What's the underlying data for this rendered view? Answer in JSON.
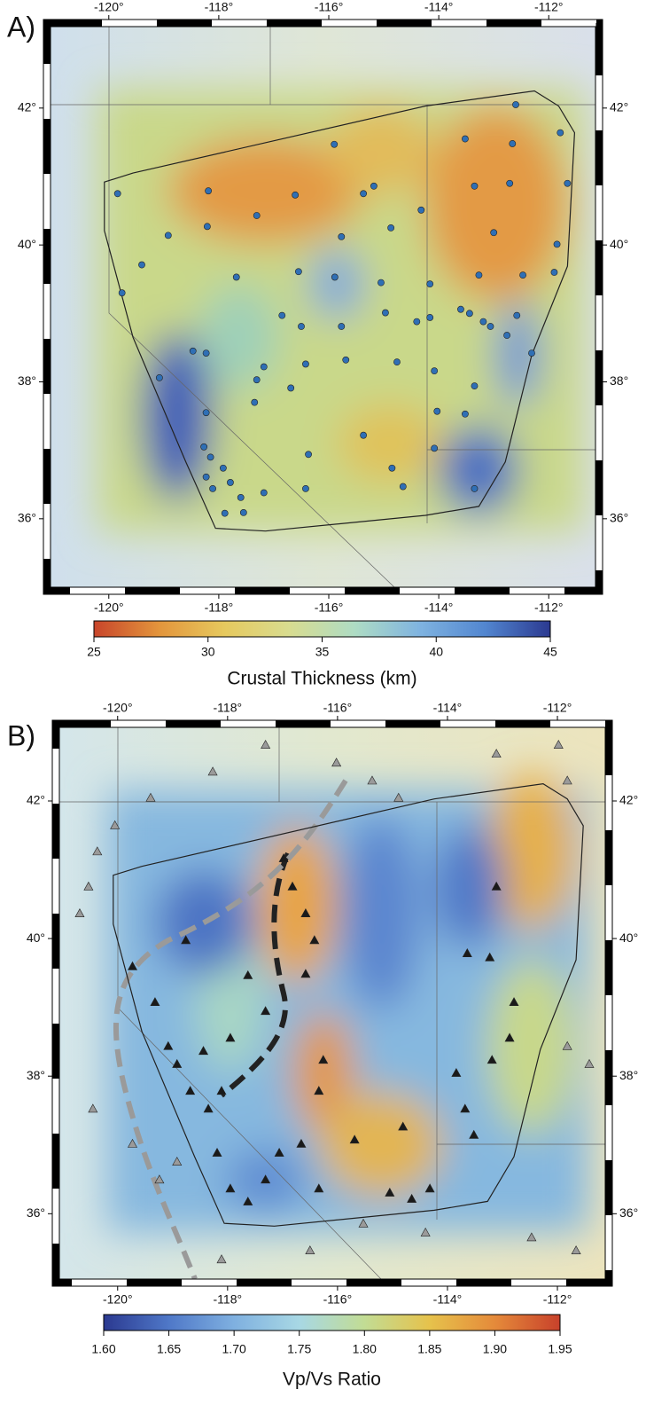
{
  "chart_data": [
    {
      "type": "map",
      "panel_label": "A)",
      "xlim": [
        -121.06,
        -111.15
      ],
      "ylim": [
        35,
        43.19
      ],
      "xticks": [
        {
          "value": -120,
          "label": "-120°"
        },
        {
          "value": -118,
          "label": "-118°"
        },
        {
          "value": -116,
          "label": "-116°"
        },
        {
          "value": -114,
          "label": "-114°"
        },
        {
          "value": -112,
          "label": "-112°"
        }
      ],
      "yticks": [
        {
          "value": 36,
          "label": "36°"
        },
        {
          "value": 38,
          "label": "38°"
        },
        {
          "value": 40,
          "label": "40°"
        },
        {
          "value": 42,
          "label": "42°"
        }
      ],
      "region": {
        "lon": [
          -120.08,
          -119.56,
          -114.24,
          -112.26,
          -111.82,
          -111.53,
          -111.66,
          -112.31,
          -112.79,
          -113.27,
          -114.24,
          -117.15,
          -118.06,
          -118.6,
          -119.56,
          -120.08
        ],
        "lat": [
          40.92,
          41.05,
          42.03,
          42.25,
          42.03,
          41.64,
          39.69,
          38.39,
          36.83,
          36.18,
          36.05,
          35.82,
          35.86,
          36.83,
          38.65,
          40.21
        ]
      },
      "series": [
        {
          "marker": "circle",
          "color": "#2f6fb5",
          "lon": [
            -112.6,
            -111.79,
            -113.52,
            -112.66,
            -115.9,
            -119.84,
            -118.19,
            -116.61,
            -115.37,
            -115.18,
            -113.35,
            -112.71,
            -111.66,
            -117.31,
            -114.32,
            -118.21,
            -114.87,
            -118.92,
            -115.77,
            -113.0,
            -111.85,
            -119.4,
            -119.76,
            -117.68,
            -116.55,
            -115.89,
            -115.05,
            -114.16,
            -113.27,
            -112.47,
            -111.9,
            -116.85,
            -116.5,
            -115.77,
            -114.97,
            -114.4,
            -114.16,
            -113.6,
            -113.44,
            -113.19,
            -113.06,
            -112.58,
            -118.47,
            -118.23,
            -119.08,
            -117.18,
            -116.42,
            -115.69,
            -114.76,
            -114.08,
            -117.31,
            -116.69,
            -113.35,
            -112.31,
            -112.76,
            -117.35,
            -118.23,
            -114.03,
            -113.52,
            -115.37,
            -114.08,
            -118.27,
            -118.15,
            -117.92,
            -116.37,
            -114.85,
            -118.23,
            -117.79,
            -118.11,
            -117.6,
            -117.18,
            -116.42,
            -114.65,
            -117.89,
            -117.55,
            -113.35
          ],
          "lat": [
            42.05,
            41.64,
            41.55,
            41.48,
            41.47,
            40.75,
            40.79,
            40.73,
            40.75,
            40.86,
            40.86,
            40.9,
            40.9,
            40.43,
            40.51,
            40.27,
            40.25,
            40.14,
            40.12,
            40.18,
            40.01,
            39.71,
            39.3,
            39.53,
            39.61,
            39.53,
            39.45,
            39.43,
            39.56,
            39.56,
            39.6,
            38.97,
            38.81,
            38.81,
            39.01,
            38.88,
            38.94,
            39.06,
            39.0,
            38.88,
            38.81,
            38.97,
            38.45,
            38.42,
            38.06,
            38.22,
            38.26,
            38.32,
            38.29,
            38.16,
            38.03,
            37.91,
            37.94,
            38.42,
            38.68,
            37.7,
            37.55,
            37.57,
            37.53,
            37.22,
            37.03,
            37.05,
            36.9,
            36.74,
            36.94,
            36.74,
            36.61,
            36.53,
            36.44,
            36.31,
            36.38,
            36.44,
            36.47,
            36.08,
            36.09,
            36.44
          ]
        }
      ],
      "colorbar": {
        "label": "Crustal Thickness (km)",
        "clim": [
          25,
          45
        ],
        "ticks": [
          25,
          30,
          35,
          40,
          45
        ],
        "colormap": [
          "#c8452b",
          "#e3953c",
          "#e6c95e",
          "#d8dc90",
          "#aedcc4",
          "#7fb3e0",
          "#5286d0",
          "#2b3990"
        ]
      }
    },
    {
      "type": "map",
      "panel_label": "B)",
      "xlim": [
        -121.06,
        -111.13
      ],
      "ylim": [
        35.05,
        43.07
      ],
      "xticks": [
        {
          "value": -120,
          "label": "-120°"
        },
        {
          "value": -118,
          "label": "-118°"
        },
        {
          "value": -116,
          "label": "-116°"
        },
        {
          "value": -114,
          "label": "-114°"
        },
        {
          "value": -112,
          "label": "-112°"
        }
      ],
      "yticks": [
        {
          "value": 36,
          "label": "36°"
        },
        {
          "value": 38,
          "label": "38°"
        },
        {
          "value": 40,
          "label": "40°"
        },
        {
          "value": 42,
          "label": "42°"
        }
      ],
      "region": {
        "lon": [
          -120.08,
          -119.56,
          -114.24,
          -112.26,
          -111.82,
          -111.53,
          -111.66,
          -112.31,
          -112.79,
          -113.27,
          -114.24,
          -117.15,
          -118.06,
          -118.6,
          -119.56,
          -120.08
        ],
        "lat": [
          40.92,
          41.05,
          42.03,
          42.25,
          42.03,
          41.64,
          39.69,
          38.39,
          36.83,
          36.18,
          36.05,
          35.82,
          35.86,
          36.83,
          38.65,
          40.21
        ]
      },
      "series": [
        {
          "marker": "triangle",
          "color": "#9a9a9a",
          "lon": [
            -120.05,
            -120.53,
            -120.69,
            -120.45,
            -119.73,
            -119.24,
            -118.11,
            -116.5,
            -115.53,
            -114.4,
            -112.47,
            -111.66,
            -117.31,
            -116.02,
            -115.37,
            -114.89,
            -113.11,
            -111.98,
            -111.82,
            -111.42,
            -111.82,
            -118.27,
            -119.4,
            -120.37,
            -118.92
          ],
          "lat": [
            41.64,
            40.75,
            40.36,
            37.52,
            37.01,
            36.49,
            35.33,
            35.46,
            35.85,
            35.72,
            35.65,
            35.46,
            42.81,
            42.55,
            42.29,
            42.04,
            42.68,
            42.81,
            42.29,
            38.17,
            38.43,
            42.42,
            42.04,
            41.26,
            36.75
          ]
        },
        {
          "marker": "triangle",
          "color": "#1a1a1a",
          "lon": [
            -116.98,
            -116.82,
            -116.58,
            -116.42,
            -116.58,
            -113.11,
            -113.23,
            -113.64,
            -112.79,
            -112.87,
            -113.19,
            -113.84,
            -113.68,
            -113.52,
            -116.26,
            -116.34,
            -119.73,
            -119.32,
            -119.08,
            -118.92,
            -118.68,
            -118.35,
            -118.11,
            -118.19,
            -117.95,
            -117.63,
            -117.31,
            -117.06,
            -116.66,
            -116.34,
            -115.69,
            -114.81,
            -115.05,
            -114.65,
            -114.32,
            -117.63,
            -117.31,
            -117.95,
            -118.44,
            -118.76
          ],
          "lat": [
            41.16,
            40.75,
            40.36,
            39.97,
            39.48,
            40.75,
            39.72,
            39.78,
            39.07,
            38.55,
            38.23,
            38.04,
            37.52,
            37.14,
            38.23,
            37.78,
            39.59,
            39.07,
            38.43,
            38.17,
            37.78,
            37.52,
            37.78,
            36.88,
            36.36,
            36.17,
            36.49,
            36.88,
            37.01,
            36.36,
            37.07,
            37.26,
            36.3,
            36.21,
            36.36,
            39.46,
            38.94,
            38.55,
            38.36,
            39.97
          ]
        }
      ],
      "colorbar": {
        "label": "Vp/Vs Ratio",
        "clim": [
          1.6,
          1.95
        ],
        "ticks": [
          {
            "value": 1.6,
            "label": "1.60"
          },
          {
            "value": 1.65,
            "label": "1.65"
          },
          {
            "value": 1.7,
            "label": "1.70"
          },
          {
            "value": 1.75,
            "label": "1.75"
          },
          {
            "value": 1.8,
            "label": "1.80"
          },
          {
            "value": 1.85,
            "label": "1.85"
          },
          {
            "value": 1.9,
            "label": "1.90"
          },
          {
            "value": 1.95,
            "label": "1.95"
          }
        ],
        "colormap": [
          "#2b3990",
          "#4f78c8",
          "#7fb0e0",
          "#a8d8e4",
          "#c2dc94",
          "#e6c24c",
          "#e58a3a",
          "#c8412b"
        ]
      }
    }
  ]
}
